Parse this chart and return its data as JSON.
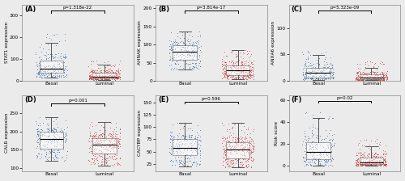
{
  "panels": [
    {
      "label": "(A)",
      "ylabel": "STAT1 expression",
      "pval": "p=1.318e-22",
      "basal": {
        "median": 70,
        "q1": 45,
        "q3": 130,
        "whislo": 15,
        "whishi": 220,
        "n": 250
      },
      "luminal": {
        "median": 25,
        "q1": 15,
        "q3": 50,
        "whislo": 5,
        "whishi": 95,
        "n": 350
      },
      "ylim": [
        0,
        350
      ],
      "yticks": [
        0,
        100,
        200,
        300
      ]
    },
    {
      "label": "(B)",
      "ylabel": "AHNAK expression",
      "pval": "p=3.814e-17",
      "basal": {
        "median": 90,
        "q1": 70,
        "q3": 110,
        "whislo": 30,
        "whishi": 135,
        "n": 250
      },
      "luminal": {
        "median": 35,
        "q1": 20,
        "q3": 55,
        "whislo": 5,
        "whishi": 85,
        "n": 350
      },
      "ylim": [
        0,
        210
      ],
      "yticks": [
        0,
        50,
        100,
        150,
        200
      ]
    },
    {
      "label": "(C)",
      "ylabel": "ANXA6 expression",
      "pval": "p=5.323e-09",
      "basal": {
        "median": 18,
        "q1": 10,
        "q3": 35,
        "whislo": 2,
        "whishi": 58,
        "n": 250
      },
      "luminal": {
        "median": 8,
        "q1": 4,
        "q3": 18,
        "whislo": 1,
        "whishi": 38,
        "n": 350
      },
      "ylim": [
        0,
        145
      ],
      "yticks": [
        0,
        50,
        100
      ]
    },
    {
      "label": "(D)",
      "ylabel": "CALR expression",
      "pval": "p=0.001",
      "basal": {
        "median": 190,
        "q1": 170,
        "q3": 210,
        "whislo": 120,
        "whishi": 240,
        "n": 250
      },
      "luminal": {
        "median": 175,
        "q1": 155,
        "q3": 195,
        "whislo": 105,
        "whishi": 225,
        "n": 350
      },
      "ylim": [
        90,
        300
      ],
      "yticks": [
        100,
        150,
        200,
        250
      ]
    },
    {
      "label": "(E)",
      "ylabel": "CACYBP expression",
      "pval": "p=0.596",
      "basal": {
        "median": 68,
        "q1": 52,
        "q3": 85,
        "whislo": 20,
        "whishi": 112,
        "n": 250
      },
      "luminal": {
        "median": 62,
        "q1": 47,
        "q3": 80,
        "whislo": 18,
        "whishi": 108,
        "n": 350
      },
      "ylim": [
        10,
        165
      ],
      "yticks": [
        25,
        50,
        75,
        100,
        125,
        150
      ]
    },
    {
      "label": "(F)",
      "ylabel": "Risk score",
      "pval": "p=0.02",
      "basal": {
        "median": 18,
        "q1": 8,
        "q3": 30,
        "whislo": 0,
        "whishi": 50,
        "n": 250
      },
      "luminal": {
        "median": 5,
        "q1": 2,
        "q3": 12,
        "whislo": 0,
        "whishi": 25,
        "n": 350
      },
      "ylim": [
        -5,
        65
      ],
      "yticks": [
        0,
        20,
        40,
        60
      ]
    }
  ],
  "basal_color": "#3366aa",
  "luminal_color": "#cc3333",
  "bg_color": "#ebebeb",
  "box_fill": "#ffffff",
  "categories": [
    "Basal",
    "Luminal"
  ],
  "seed": 42
}
